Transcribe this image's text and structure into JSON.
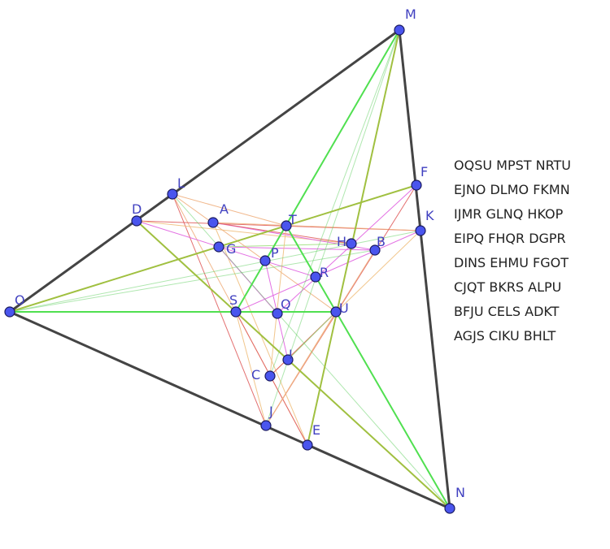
{
  "points": [
    "M",
    "N",
    "O",
    "F",
    "K",
    "L",
    "D",
    "A",
    "T",
    "G",
    "H",
    "B",
    "P",
    "R",
    "S",
    "Q",
    "U",
    "I",
    "C",
    "J",
    "E"
  ],
  "groups": [
    "OQSU MPST NRTU",
    "EJNO DLMO FKMN",
    "IJMR GLNQ HKOP",
    "EIPQ FHQR DGPR",
    "DINS EHMU FGOT",
    "CJQT BKRS ALPU",
    "BFJU CELS ADKT",
    "AGJS CIKU BHLT"
  ]
}
